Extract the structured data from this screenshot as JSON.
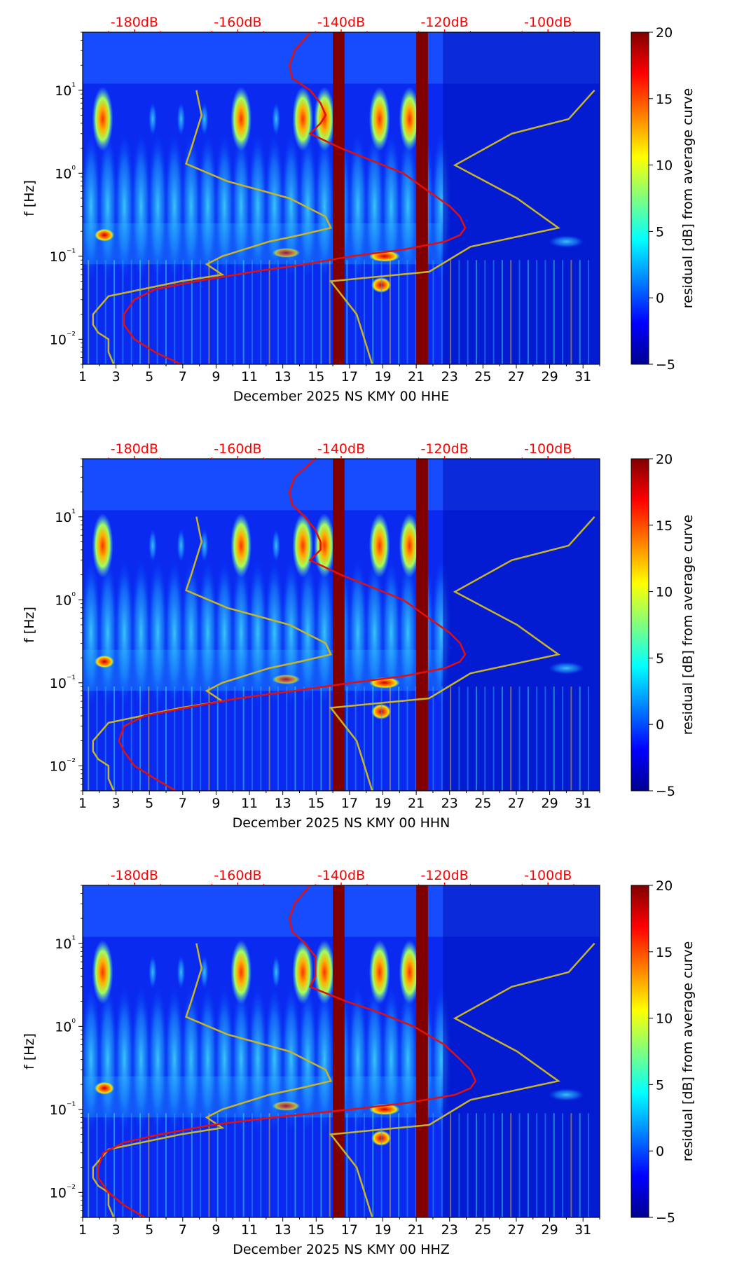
{
  "colors": {
    "nlnm_nhnm": "#c8b428",
    "avg_curve": "#e01010",
    "masked_day": "#800000",
    "top_axis_text": "#ff0000"
  },
  "chart_data": [
    {
      "type": "heatmap",
      "xlabel": "December 2025 NS KMY 00 HHE",
      "ylabel": "f [Hz]",
      "xlim": [
        1,
        32
      ],
      "ylim": [
        0.005,
        50
      ],
      "yscale": "log",
      "x_ticks": [
        "1",
        "3",
        "5",
        "7",
        "9",
        "11",
        "13",
        "15",
        "17",
        "19",
        "21",
        "23",
        "25",
        "27",
        "29",
        "31"
      ],
      "y_ticks": [
        "10⁻²",
        "10⁻¹",
        "10⁰",
        "10¹"
      ],
      "top_ticks": [
        "-180dB",
        "-160dB",
        "-140dB",
        "-120dB",
        "-100dB"
      ],
      "top_range_db": [
        -190,
        -90
      ],
      "colorbar": {
        "label": "residual [dB] from average curve",
        "range": [
          -5,
          20
        ],
        "ticks": [
          "−5",
          "0",
          "5",
          "10",
          "15",
          "20"
        ]
      },
      "masked_days": [
        [
          16,
          16.7
        ],
        [
          21,
          21.7
        ]
      ],
      "strong_bursts": [
        [
          2.2,
          4.5
        ],
        [
          10.5,
          4.5
        ],
        [
          14.2,
          4.5
        ],
        [
          15.5,
          4.5
        ],
        [
          18.8,
          4.5
        ],
        [
          20.6,
          4.5
        ]
      ],
      "avg_curve_db": {
        "f": [
          50,
          30,
          20,
          14,
          10,
          7,
          5,
          4,
          3,
          2,
          1.5,
          1,
          0.6,
          0.4,
          0.3,
          0.22,
          0.18,
          0.15,
          0.12,
          0.1,
          0.08,
          0.065,
          0.05,
          0.04,
          0.03,
          0.02,
          0.015,
          0.01,
          0.007,
          0.005
        ],
        "db": [
          -146,
          -149,
          -150,
          -149.5,
          -146,
          -144,
          -143,
          -144,
          -146,
          -140,
          -135,
          -128,
          -123,
          -119,
          -117,
          -116,
          -117,
          -120,
          -128,
          -138,
          -147,
          -157,
          -168,
          -176,
          -180,
          -182,
          -182,
          -180,
          -176,
          -171
        ]
      },
      "nlnm_db": {
        "f": [
          10,
          5,
          2,
          1.3,
          0.8,
          0.5,
          0.3,
          0.22,
          0.18,
          0.15,
          0.1,
          0.08,
          0.06,
          0.05,
          0.033,
          0.02,
          0.015,
          0.012,
          0.01,
          0.007,
          0.005
        ],
        "db": [
          -168,
          -167,
          -169,
          -170,
          -162,
          -150,
          -143,
          -142,
          -148,
          -154,
          -163,
          -166,
          -163,
          -171,
          -185,
          -188,
          -188,
          -187,
          -185,
          -185,
          -184
        ]
      },
      "nhnm_db": {
        "f": [
          10,
          4.5,
          3,
          1.25,
          0.5,
          0.22,
          0.13,
          0.065,
          0.05,
          0.02,
          0.005
        ],
        "db": [
          -91,
          -96,
          -107,
          -118,
          -106,
          -98,
          -115,
          -123,
          -142,
          -137,
          -134
        ]
      }
    },
    {
      "type": "heatmap",
      "xlabel": "December 2025 NS KMY 00 HHN",
      "ylabel": "f [Hz]",
      "xlim": [
        1,
        32
      ],
      "ylim": [
        0.005,
        50
      ],
      "yscale": "log",
      "x_ticks": [
        "1",
        "3",
        "5",
        "7",
        "9",
        "11",
        "13",
        "15",
        "17",
        "19",
        "21",
        "23",
        "25",
        "27",
        "29",
        "31"
      ],
      "y_ticks": [
        "10⁻²",
        "10⁻¹",
        "10⁰",
        "10¹"
      ],
      "top_ticks": [
        "-180dB",
        "-160dB",
        "-140dB",
        "-120dB",
        "-100dB"
      ],
      "top_range_db": [
        -190,
        -90
      ],
      "colorbar": {
        "label": "residual [dB] from average curve",
        "range": [
          -5,
          20
        ],
        "ticks": [
          "−5",
          "0",
          "5",
          "10",
          "15",
          "20"
        ]
      },
      "masked_days": [
        [
          16,
          16.7
        ],
        [
          21,
          21.7
        ]
      ],
      "strong_bursts": [
        [
          2.2,
          4.5
        ],
        [
          10.5,
          4.5
        ],
        [
          14.2,
          4.5
        ],
        [
          15.5,
          4.5
        ],
        [
          18.8,
          4.5
        ],
        [
          20.6,
          4.5
        ]
      ],
      "avg_curve_db": {
        "f": [
          50,
          30,
          20,
          14,
          10,
          7,
          5,
          4,
          3,
          2,
          1.5,
          1,
          0.6,
          0.4,
          0.3,
          0.22,
          0.18,
          0.15,
          0.12,
          0.1,
          0.08,
          0.065,
          0.05,
          0.04,
          0.03,
          0.02,
          0.015,
          0.01,
          0.007,
          0.005
        ],
        "db": [
          -145,
          -149,
          -150,
          -149.5,
          -147,
          -145,
          -144,
          -144,
          -146,
          -140,
          -135,
          -128,
          -123,
          -119,
          -117,
          -116,
          -117,
          -120,
          -128,
          -138,
          -149,
          -160,
          -170,
          -178,
          -182,
          -183,
          -182,
          -180,
          -176,
          -172
        ]
      },
      "nlnm_db": {
        "f": [
          10,
          5,
          2,
          1.3,
          0.8,
          0.5,
          0.3,
          0.22,
          0.18,
          0.15,
          0.1,
          0.08,
          0.06,
          0.05,
          0.033,
          0.02,
          0.015,
          0.012,
          0.01,
          0.007,
          0.005
        ],
        "db": [
          -168,
          -167,
          -169,
          -170,
          -162,
          -150,
          -143,
          -142,
          -148,
          -154,
          -163,
          -166,
          -163,
          -171,
          -185,
          -188,
          -188,
          -187,
          -185,
          -185,
          -184
        ]
      },
      "nhnm_db": {
        "f": [
          10,
          4.5,
          3,
          1.25,
          0.5,
          0.22,
          0.13,
          0.065,
          0.05,
          0.02,
          0.005
        ],
        "db": [
          -91,
          -96,
          -107,
          -118,
          -106,
          -98,
          -115,
          -123,
          -142,
          -137,
          -134
        ]
      }
    },
    {
      "type": "heatmap",
      "xlabel": "December 2025 NS KMY 00 HHZ",
      "ylabel": "f [Hz]",
      "xlim": [
        1,
        32
      ],
      "ylim": [
        0.005,
        50
      ],
      "yscale": "log",
      "x_ticks": [
        "1",
        "3",
        "5",
        "7",
        "9",
        "11",
        "13",
        "15",
        "17",
        "19",
        "21",
        "23",
        "25",
        "27",
        "29",
        "31"
      ],
      "y_ticks": [
        "10⁻²",
        "10⁻¹",
        "10⁰",
        "10¹"
      ],
      "top_ticks": [
        "-180dB",
        "-160dB",
        "-140dB",
        "-120dB",
        "-100dB"
      ],
      "top_range_db": [
        -190,
        -90
      ],
      "colorbar": {
        "label": "residual [dB] from average curve",
        "range": [
          -5,
          20
        ],
        "ticks": [
          "−5",
          "0",
          "5",
          "10",
          "15",
          "20"
        ]
      },
      "masked_days": [
        [
          16,
          16.7
        ],
        [
          21,
          21.7
        ]
      ],
      "strong_bursts": [
        [
          2.2,
          4.5
        ],
        [
          10.5,
          4.5
        ],
        [
          14.2,
          4.5
        ],
        [
          15.5,
          4.5
        ],
        [
          18.8,
          4.5
        ],
        [
          20.6,
          4.5
        ]
      ],
      "avg_curve_db": {
        "f": [
          50,
          30,
          20,
          14,
          10,
          7,
          5,
          4,
          3,
          2,
          1.5,
          1,
          0.6,
          0.4,
          0.3,
          0.22,
          0.18,
          0.15,
          0.12,
          0.1,
          0.08,
          0.065,
          0.05,
          0.04,
          0.03,
          0.02,
          0.015,
          0.01,
          0.007,
          0.005
        ],
        "db": [
          -146,
          -149,
          -150,
          -149.5,
          -147,
          -145,
          -145,
          -145,
          -146,
          -139,
          -133,
          -126,
          -120,
          -117,
          -115,
          -114,
          -115,
          -118,
          -127,
          -138,
          -153,
          -165,
          -175,
          -182,
          -186,
          -187,
          -187,
          -185,
          -182,
          -178
        ]
      },
      "nlnm_db": {
        "f": [
          10,
          5,
          2,
          1.3,
          0.8,
          0.5,
          0.3,
          0.22,
          0.18,
          0.15,
          0.1,
          0.08,
          0.06,
          0.05,
          0.033,
          0.02,
          0.015,
          0.012,
          0.01,
          0.007,
          0.005
        ],
        "db": [
          -168,
          -167,
          -169,
          -170,
          -162,
          -150,
          -143,
          -142,
          -148,
          -154,
          -163,
          -166,
          -163,
          -171,
          -185,
          -188,
          -188,
          -187,
          -185,
          -185,
          -184
        ]
      },
      "nhnm_db": {
        "f": [
          10,
          4.5,
          3,
          1.25,
          0.5,
          0.22,
          0.13,
          0.065,
          0.05,
          0.02,
          0.005
        ],
        "db": [
          -91,
          -96,
          -107,
          -118,
          -106,
          -98,
          -115,
          -123,
          -142,
          -137,
          -134
        ]
      }
    }
  ]
}
